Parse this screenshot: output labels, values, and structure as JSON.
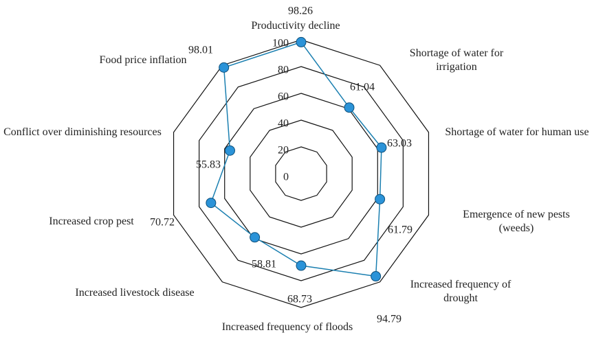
{
  "chart_data": {
    "type": "radar",
    "categories": [
      "Productivity decline",
      "Shortage of water for irrigation",
      "Shortage of water for human use",
      "Emergence of new pests (weeds)",
      "Increased frequency of drought",
      "Increased frequency of floods",
      "Increased livestock disease",
      "Increased crop pest",
      "Conflict over diminishing resources",
      "Food price inflation"
    ],
    "values": [
      98.26,
      61.04,
      63.03,
      61.79,
      94.79,
      68.73,
      58.81,
      70.72,
      55.83,
      98.01
    ],
    "color": "#1a7fb0",
    "marker_color": "#2b93d8",
    "rlim": [
      0,
      100
    ],
    "rticks": [
      0,
      20,
      40,
      60,
      80,
      100
    ],
    "grid": true
  }
}
